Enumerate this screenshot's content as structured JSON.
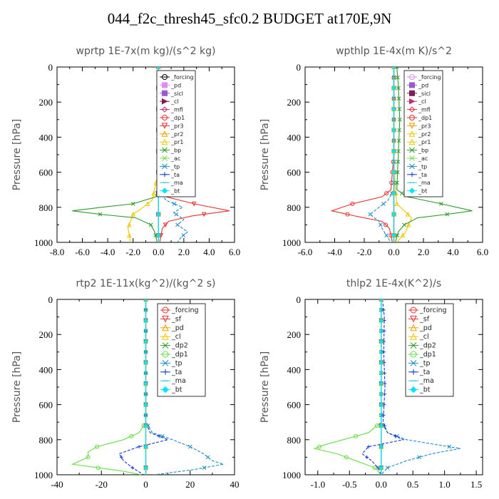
{
  "title": "044_f2c_thresh45_sfc0.2  BUDGET at170E,9N",
  "chart_data": [
    {
      "type": "line",
      "title": "wprtp   1E-7x(m kg)/(s^2 kg)",
      "ylabel": "Pressure [hPa]",
      "xlim": [
        -8,
        6
      ],
      "ylim": [
        1000,
        0
      ],
      "xticks": [
        "-8.0",
        "-6.0",
        "-4.0",
        "-2.0",
        "0.0",
        "2.0",
        "4.0",
        "6.0"
      ],
      "xtick_values": [
        -8,
        -6,
        -4,
        -2,
        0,
        2,
        4,
        6
      ],
      "yticks": [
        "0",
        "200",
        "400",
        "600",
        "800",
        "1000"
      ],
      "ytick_values": [
        0,
        200,
        400,
        600,
        800,
        1000
      ],
      "legend_position": "top-right",
      "series": [
        {
          "name": "_forcing",
          "color": "#000000",
          "marker": "o",
          "p": [
            0,
            1000
          ],
          "x": [
            0,
            0
          ]
        },
        {
          "name": "_pd",
          "color": "#e08cf0",
          "marker": "s",
          "p": [
            0,
            1000
          ],
          "x": [
            0,
            0
          ]
        },
        {
          "name": "_sicl",
          "color": "#9b59d0",
          "marker": "s",
          "p": [
            0,
            1000
          ],
          "x": [
            0,
            0
          ]
        },
        {
          "name": "_cl",
          "color": "#7a1e55",
          "marker": ">",
          "p": [
            0,
            1000
          ],
          "x": [
            0,
            0
          ]
        },
        {
          "name": "_mfl",
          "color": "#c03070",
          "marker": "d",
          "p": [
            0,
            1000
          ],
          "x": [
            0,
            0
          ]
        },
        {
          "name": "_dp1",
          "color": "#e83030",
          "marker": "o",
          "p": [
            0,
            1000
          ],
          "x": [
            0,
            0
          ]
        },
        {
          "name": "_pr3",
          "color": "#e83030",
          "marker": "v",
          "p": [
            0,
            500,
            700,
            740,
            780,
            820,
            850,
            880,
            920,
            960,
            1000
          ],
          "x": [
            0,
            0,
            0.1,
            0.6,
            2.8,
            5.6,
            2.6,
            0.8,
            0.3,
            0.2,
            0.1
          ]
        },
        {
          "name": "_pr2",
          "color": "#f0a000",
          "marker": "^",
          "p": [
            0,
            1000
          ],
          "x": [
            0,
            0
          ]
        },
        {
          "name": "_pr1",
          "color": "#f0c800",
          "marker": "^",
          "p": [
            0,
            400,
            600,
            760,
            800,
            840,
            880,
            920,
            960,
            1000
          ],
          "x": [
            0,
            0,
            0,
            -0.5,
            -1.2,
            -2.0,
            -2.2,
            -2.4,
            -2.3,
            -2.2
          ]
        },
        {
          "name": "_bp",
          "color": "#2c9a2c",
          "marker": "x",
          "p": [
            0,
            700,
            740,
            780,
            800,
            820,
            840,
            860,
            900,
            940,
            1000
          ],
          "x": [
            0,
            0,
            -0.2,
            -2.0,
            -4.5,
            -6.8,
            -4.6,
            -1.8,
            -0.6,
            -0.3,
            -0.1
          ]
        },
        {
          "name": "_ac",
          "color": "#7ed957",
          "marker": "x",
          "p": [
            0,
            1000
          ],
          "x": [
            0,
            0
          ]
        },
        {
          "name": "_tp",
          "color": "#1f8fc8",
          "marker": "x",
          "p": [
            0,
            700,
            760,
            800,
            830,
            870,
            900,
            940,
            970,
            1000
          ],
          "x": [
            0,
            0,
            0.6,
            1.9,
            1.2,
            2.0,
            1.5,
            2.3,
            1.8,
            1.5
          ]
        },
        {
          "name": "_ta",
          "color": "#1a3ad0",
          "marker": "+",
          "p": [
            0,
            1000
          ],
          "x": [
            0,
            0
          ]
        },
        {
          "name": "_ma",
          "color": "#35c6e0",
          "marker": "-",
          "p": [
            0,
            1000
          ],
          "x": [
            0,
            0
          ]
        },
        {
          "name": "_bt",
          "color": "#00e5ff",
          "marker": "diamond",
          "p": [
            0,
            1000
          ],
          "x": [
            0,
            0
          ]
        }
      ]
    },
    {
      "type": "line",
      "title": "wpthlp   1E-4x(m K)/s^2",
      "ylabel": "Pressure [hPa]",
      "xlim": [
        -6,
        6
      ],
      "ylim": [
        1000,
        0
      ],
      "xticks": [
        "-6.0",
        "-4.0",
        "-2.0",
        "0.0",
        "2.0",
        "4.0",
        "6.0"
      ],
      "xtick_values": [
        -6,
        -4,
        -2,
        0,
        2,
        4,
        6
      ],
      "yticks": [
        "0",
        "200",
        "400",
        "600",
        "800",
        "1000"
      ],
      "ytick_values": [
        0,
        200,
        400,
        600,
        800,
        1000
      ],
      "legend_position": "top-right",
      "series": [
        {
          "name": "_forcing",
          "color": "#e08cf0",
          "marker": "o",
          "p": [
            0,
            1000
          ],
          "x": [
            0,
            0
          ]
        },
        {
          "name": "_pd",
          "color": "#9b59d0",
          "marker": "s",
          "p": [
            0,
            1000
          ],
          "x": [
            0,
            0
          ]
        },
        {
          "name": "_sicl",
          "color": "#7a1e55",
          "marker": "s",
          "p": [
            0,
            1000
          ],
          "x": [
            0,
            0
          ]
        },
        {
          "name": "_cl",
          "color": "#c03070",
          "marker": ">",
          "p": [
            0,
            1000
          ],
          "x": [
            0,
            0
          ]
        },
        {
          "name": "_mfl",
          "color": "#e83030",
          "marker": "d",
          "p": [
            0,
            1000
          ],
          "x": [
            0,
            0
          ]
        },
        {
          "name": "_dp1",
          "color": "#e83030",
          "marker": "o",
          "p": [
            0,
            500,
            700,
            740,
            780,
            820,
            850,
            880,
            920,
            960,
            1000
          ],
          "x": [
            0,
            0,
            -0.2,
            -0.8,
            -2.8,
            -4.2,
            -2.6,
            -0.8,
            -0.3,
            -0.2,
            -0.1
          ]
        },
        {
          "name": "_pr3",
          "color": "#f0a000",
          "marker": "v",
          "p": [
            0,
            1000
          ],
          "x": [
            0,
            0
          ]
        },
        {
          "name": "_pr2",
          "color": "#f0c800",
          "marker": "^",
          "p": [
            0,
            1000
          ],
          "x": [
            0,
            0
          ]
        },
        {
          "name": "_pr1",
          "color": "#f0c800",
          "marker": "^",
          "p": [
            0,
            600,
            780,
            820,
            860,
            900,
            940,
            980,
            1000
          ],
          "x": [
            0,
            0,
            0.2,
            0.7,
            1.2,
            1.0,
            0.8,
            0.4,
            0.2
          ]
        },
        {
          "name": "_bp",
          "color": "#2c9a2c",
          "marker": "x",
          "p": [
            0,
            100,
            300,
            500,
            700,
            740,
            780,
            820,
            840,
            860,
            900,
            940,
            1000
          ],
          "x": [
            0.2,
            0.3,
            0.4,
            0.3,
            0.2,
            0.9,
            3.2,
            5.3,
            3.6,
            1.6,
            0.7,
            0.3,
            0.1
          ]
        },
        {
          "name": "_ac",
          "color": "#7ed957",
          "marker": "x",
          "p": [
            0,
            1000
          ],
          "x": [
            0,
            0
          ]
        },
        {
          "name": "_tp",
          "color": "#1f8fc8",
          "marker": "x",
          "p": [
            0,
            700,
            760,
            800,
            840,
            880,
            920,
            960,
            1000
          ],
          "x": [
            0,
            0,
            -0.4,
            -1.0,
            -1.6,
            -1.0,
            -0.8,
            -0.5,
            -0.2
          ]
        },
        {
          "name": "_ta",
          "color": "#1a3ad0",
          "marker": "+",
          "p": [
            0,
            1000
          ],
          "x": [
            0,
            0
          ]
        },
        {
          "name": "_ma",
          "color": "#35c6e0",
          "marker": "-",
          "p": [
            0,
            1000
          ],
          "x": [
            0,
            0
          ]
        },
        {
          "name": "_bt",
          "color": "#00e5ff",
          "marker": "diamond",
          "p": [
            0,
            1000
          ],
          "x": [
            0,
            0
          ]
        }
      ]
    },
    {
      "type": "line",
      "title": "rtp2   1E-11x(kg^2)/(kg^2 s)",
      "ylabel": "Pressure [hPa]",
      "xlim": [
        -40,
        40
      ],
      "ylim": [
        1000,
        0
      ],
      "xticks": [
        "-40",
        "-20",
        "0",
        "20",
        "40"
      ],
      "xtick_values": [
        -40,
        -20,
        0,
        20,
        40
      ],
      "yticks": [
        "0",
        "200",
        "400",
        "600",
        "800",
        "1000"
      ],
      "ytick_values": [
        0,
        200,
        400,
        600,
        800,
        1000
      ],
      "legend_position": "top-right",
      "series": [
        {
          "name": "_forcing",
          "color": "#e83030",
          "marker": "o",
          "p": [
            0,
            1000
          ],
          "x": [
            0,
            0
          ]
        },
        {
          "name": "_sf",
          "color": "#e83030",
          "marker": "v",
          "p": [
            0,
            1000
          ],
          "x": [
            0,
            0
          ]
        },
        {
          "name": "_pd",
          "color": "#f0a000",
          "marker": "^",
          "p": [
            0,
            1000
          ],
          "x": [
            0,
            0
          ]
        },
        {
          "name": "_cl",
          "color": "#f0c800",
          "marker": "^",
          "p": [
            0,
            1000
          ],
          "x": [
            0,
            0
          ]
        },
        {
          "name": "_dp2",
          "color": "#2c9a2c",
          "marker": "x",
          "p": [
            0,
            1000
          ],
          "x": [
            0,
            0
          ]
        },
        {
          "name": "_dp1",
          "color": "#66dd44",
          "marker": "o",
          "p": [
            0,
            700,
            760,
            800,
            840,
            870,
            900,
            940,
            980,
            1000
          ],
          "x": [
            0,
            0,
            -3,
            -10,
            -22,
            -26,
            -26,
            -33,
            -10,
            -2
          ]
        },
        {
          "name": "_tp",
          "color": "#1f8fc8",
          "marker": "x",
          "p": [
            0,
            700,
            760,
            800,
            840,
            880,
            920,
            940,
            970,
            1000
          ],
          "x": [
            0,
            0,
            3,
            12,
            20,
            26,
            30,
            35,
            22,
            4
          ]
        },
        {
          "name": "_ta",
          "color": "#1a3ad0",
          "marker": "+",
          "p": [
            0,
            700,
            760,
            800,
            840,
            880,
            920,
            960,
            1000
          ],
          "x": [
            0,
            0,
            2,
            10,
            -3,
            -12,
            -10,
            -6,
            -1
          ]
        },
        {
          "name": "_ma",
          "color": "#35c6e0",
          "marker": "-",
          "p": [
            0,
            1000
          ],
          "x": [
            0,
            0
          ]
        },
        {
          "name": "_bt",
          "color": "#00e5ff",
          "marker": "diamond",
          "p": [
            0,
            1000
          ],
          "x": [
            0,
            0
          ]
        }
      ]
    },
    {
      "type": "line",
      "title": "thlp2   1E-4x(K^2)/s",
      "ylabel": "Pressure [hPa]",
      "xlim": [
        -1.2,
        1.6
      ],
      "ylim": [
        1000,
        0
      ],
      "xticks": [
        "-1.0",
        "-0.5",
        "0.0",
        "0.5",
        "1.0",
        "1.5"
      ],
      "xtick_values": [
        -1.0,
        -0.5,
        0.0,
        0.5,
        1.0,
        1.5
      ],
      "yticks": [
        "0",
        "200",
        "400",
        "600",
        "800",
        "1000"
      ],
      "ytick_values": [
        0,
        200,
        400,
        600,
        800,
        1000
      ],
      "legend_position": "top-right",
      "series": [
        {
          "name": "_forcing",
          "color": "#e83030",
          "marker": "o",
          "p": [
            0,
            1000
          ],
          "x": [
            0,
            0
          ]
        },
        {
          "name": "_sf",
          "color": "#e83030",
          "marker": "v",
          "p": [
            0,
            1000
          ],
          "x": [
            0,
            0
          ]
        },
        {
          "name": "_pd",
          "color": "#f0a000",
          "marker": "^",
          "p": [
            0,
            1000
          ],
          "x": [
            0,
            0
          ]
        },
        {
          "name": "_cl",
          "color": "#f0c800",
          "marker": "^",
          "p": [
            0,
            1000
          ],
          "x": [
            0,
            0
          ]
        },
        {
          "name": "_dp2",
          "color": "#2c9a2c",
          "marker": "x",
          "p": [
            0,
            1000
          ],
          "x": [
            0,
            0
          ]
        },
        {
          "name": "_dp1",
          "color": "#66dd44",
          "marker": "o",
          "p": [
            0,
            700,
            760,
            800,
            830,
            850,
            880,
            920,
            960,
            1000
          ],
          "x": [
            0,
            0,
            -0.2,
            -0.6,
            -0.9,
            -1.05,
            -0.7,
            -0.4,
            -0.1,
            0
          ]
        },
        {
          "name": "_tp",
          "color": "#1f8fc8",
          "marker": "x",
          "p": [
            0,
            700,
            760,
            800,
            830,
            850,
            880,
            920,
            960,
            1000
          ],
          "x": [
            0,
            0,
            0.1,
            0.4,
            0.9,
            1.25,
            0.8,
            0.4,
            0.1,
            0
          ]
        },
        {
          "name": "_ta",
          "color": "#1a3ad0",
          "marker": "+",
          "p": [
            0,
            100,
            300,
            500,
            700,
            760,
            800,
            840,
            880,
            920,
            960,
            1000
          ],
          "x": [
            0.02,
            0.05,
            0.04,
            0.06,
            0.03,
            0.1,
            0.35,
            -0.2,
            -0.3,
            -0.15,
            -0.05,
            0
          ]
        },
        {
          "name": "_ma",
          "color": "#35c6e0",
          "marker": "-",
          "p": [
            0,
            1000
          ],
          "x": [
            0,
            0
          ]
        },
        {
          "name": "_bt",
          "color": "#00e5ff",
          "marker": "diamond",
          "p": [
            0,
            1000
          ],
          "x": [
            0,
            0
          ]
        }
      ]
    }
  ]
}
